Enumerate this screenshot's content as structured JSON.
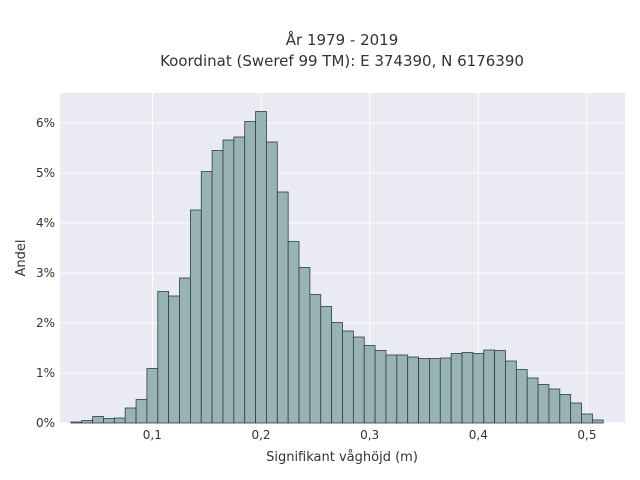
{
  "chart_data": {
    "type": "bar",
    "title": "År 1979 - 2019",
    "subtitle": "Koordinat (Sweref 99 TM): E 374390, N 6176390",
    "xlabel": "Signifikant våghöjd (m)",
    "ylabel": "Andel",
    "xlim": [
      0.015,
      0.535
    ],
    "ylim": [
      0,
      6.6
    ],
    "x_ticks": [
      {
        "value": 0.1,
        "label": "0,1"
      },
      {
        "value": 0.2,
        "label": "0,2"
      },
      {
        "value": 0.3,
        "label": "0,3"
      },
      {
        "value": 0.4,
        "label": "0,4"
      },
      {
        "value": 0.5,
        "label": "0,5"
      }
    ],
    "y_ticks": [
      {
        "value": 0,
        "label": "0%"
      },
      {
        "value": 1,
        "label": "1%"
      },
      {
        "value": 2,
        "label": "2%"
      },
      {
        "value": 3,
        "label": "3%"
      },
      {
        "value": 4,
        "label": "4%"
      },
      {
        "value": 5,
        "label": "5%"
      },
      {
        "value": 6,
        "label": "6%"
      }
    ],
    "grid": true,
    "bin_width": 0.01,
    "bin_starts": [
      0.025,
      0.035,
      0.045,
      0.055,
      0.065,
      0.075,
      0.085,
      0.095,
      0.105,
      0.115,
      0.125,
      0.135,
      0.145,
      0.155,
      0.165,
      0.175,
      0.185,
      0.195,
      0.205,
      0.215,
      0.225,
      0.235,
      0.245,
      0.255,
      0.265,
      0.275,
      0.285,
      0.295,
      0.305,
      0.315,
      0.325,
      0.335,
      0.345,
      0.355,
      0.365,
      0.375,
      0.385,
      0.395,
      0.405,
      0.415,
      0.425,
      0.435,
      0.445,
      0.455,
      0.465,
      0.475,
      0.485,
      0.495,
      0.505
    ],
    "values": [
      0.02,
      0.05,
      0.13,
      0.09,
      0.1,
      0.3,
      0.47,
      1.09,
      2.63,
      2.54,
      2.9,
      4.26,
      5.03,
      5.45,
      5.66,
      5.72,
      6.03,
      6.23,
      5.62,
      4.62,
      3.63,
      3.11,
      2.57,
      2.33,
      2.01,
      1.84,
      1.72,
      1.55,
      1.45,
      1.36,
      1.36,
      1.32,
      1.29,
      1.29,
      1.3,
      1.39,
      1.41,
      1.39,
      1.46,
      1.45,
      1.24,
      1.07,
      0.9,
      0.77,
      0.68,
      0.57,
      0.4,
      0.18,
      0.06
    ],
    "colors": {
      "bar_fill": "#97b3b2",
      "bar_stroke": "#2f3f3e",
      "plot_background": "#eaeaf2",
      "grid": "#ffffff",
      "text": "#333333"
    }
  }
}
